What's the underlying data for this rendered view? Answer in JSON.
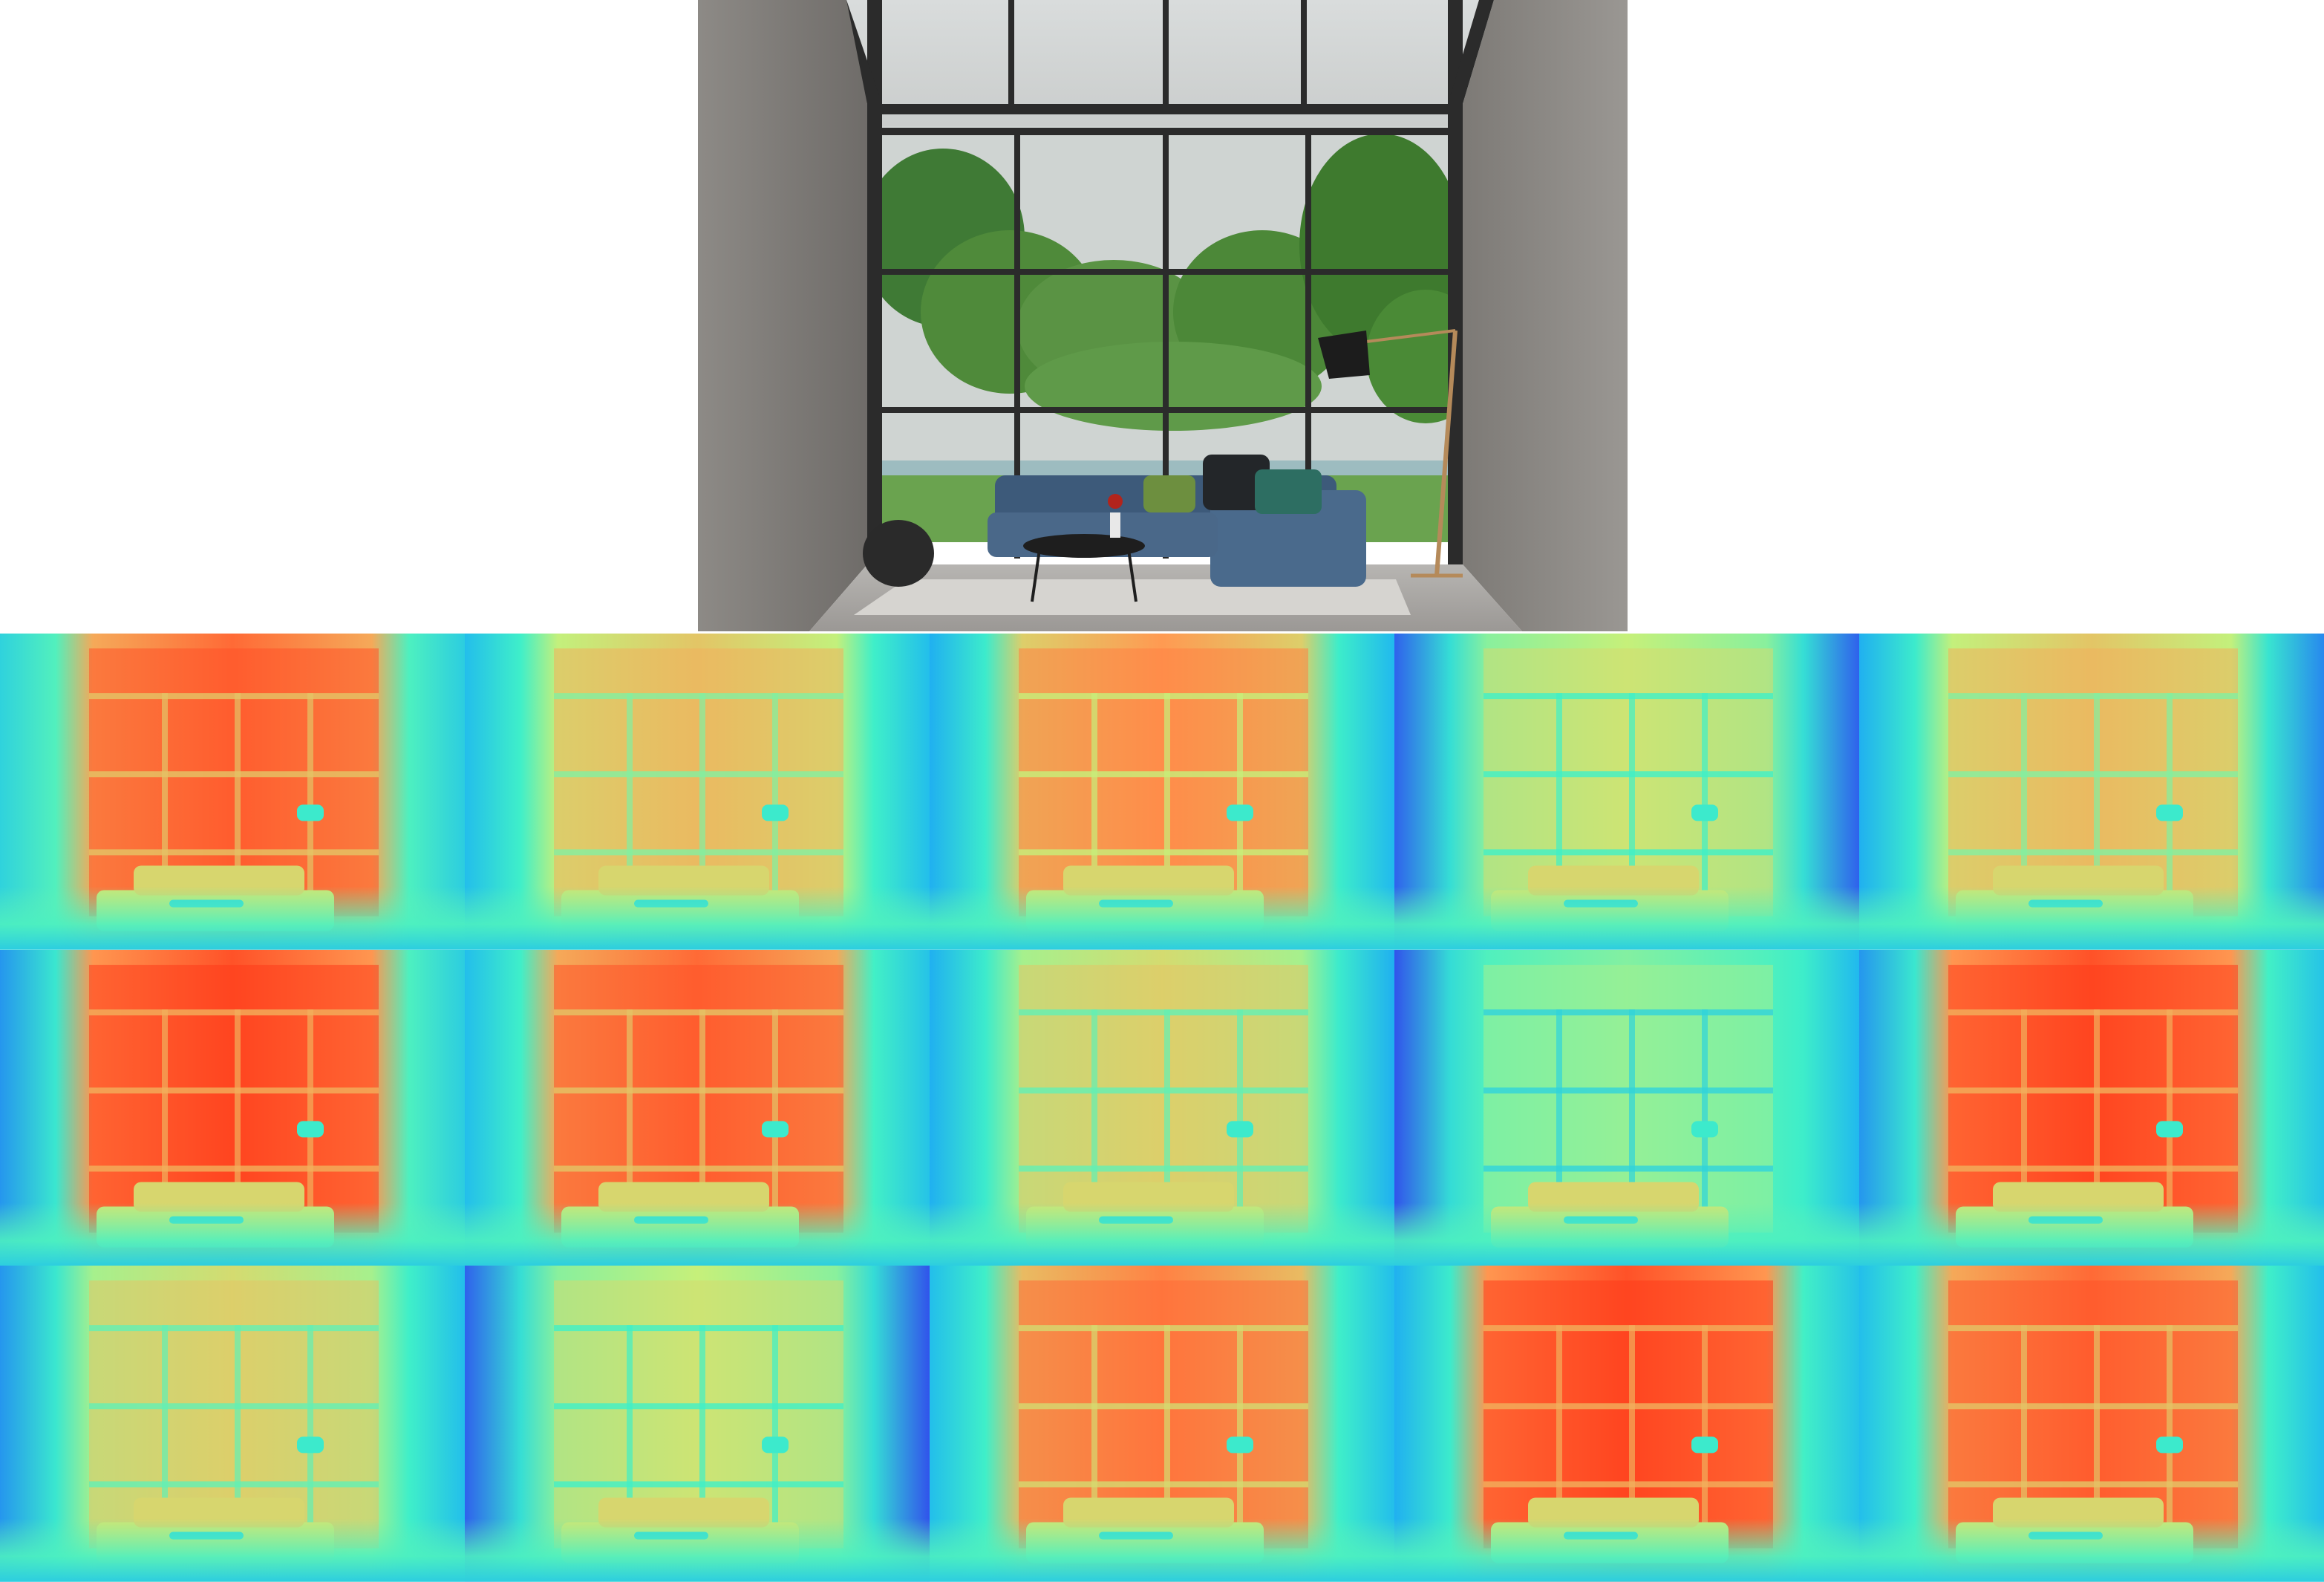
{
  "image": {
    "description_free": true
  },
  "reference_photo": {
    "subject": "living-room-with-glass-wall"
  },
  "depth_maps": {
    "rows": 3,
    "columns": 5,
    "colormap": [
      "#3b1ee8",
      "#1fb6f0",
      "#3ff0c8",
      "#c6f07a",
      "#ff9a52",
      "#ff3a1a"
    ],
    "tiles": [
      {
        "warmth": 0.9,
        "left_cool": 0.15,
        "right_cool": 0.2
      },
      {
        "warmth": 0.7,
        "left_cool": 0.35,
        "right_cool": 0.35
      },
      {
        "warmth": 0.8,
        "left_cool": 0.45,
        "right_cool": 0.4
      },
      {
        "warmth": 0.6,
        "left_cool": 0.75,
        "right_cool": 0.75
      },
      {
        "warmth": 0.7,
        "left_cool": 0.45,
        "right_cool": 0.6
      },
      {
        "warmth": 0.95,
        "left_cool": 0.55,
        "right_cool": 0.2
      },
      {
        "warmth": 0.9,
        "left_cool": 0.35,
        "right_cool": 0.3
      },
      {
        "warmth": 0.65,
        "left_cool": 0.45,
        "right_cool": 0.45
      },
      {
        "warmth": 0.5,
        "left_cool": 0.8,
        "right_cool": 0.4
      },
      {
        "warmth": 0.95,
        "left_cool": 0.55,
        "right_cool": 0.3
      },
      {
        "warmth": 0.65,
        "left_cool": 0.55,
        "right_cool": 0.35
      },
      {
        "warmth": 0.6,
        "left_cool": 0.75,
        "right_cool": 0.8
      },
      {
        "warmth": 0.85,
        "left_cool": 0.35,
        "right_cool": 0.35
      },
      {
        "warmth": 0.95,
        "left_cool": 0.45,
        "right_cool": 0.3
      },
      {
        "warmth": 0.9,
        "left_cool": 0.35,
        "right_cool": 0.35
      }
    ]
  }
}
